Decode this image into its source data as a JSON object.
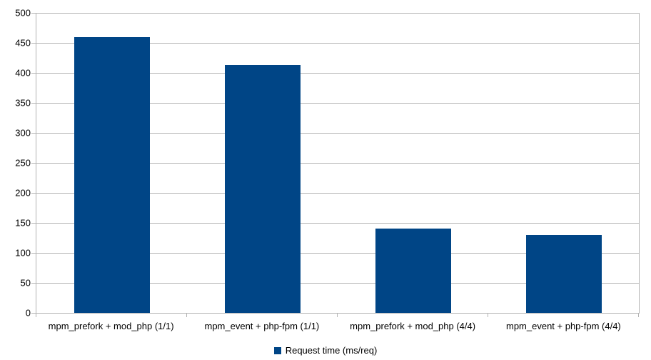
{
  "chart_data": {
    "type": "bar",
    "categories": [
      "mpm_prefork + mod_php (1/1)",
      "mpm_event + php-fpm (1/1)",
      "mpm_prefork + mod_php (4/4)",
      "mpm_event + php-fpm (4/4)"
    ],
    "series": [
      {
        "name": "Request time (ms/req)",
        "values": [
          460,
          413,
          140,
          130
        ]
      }
    ],
    "title": "",
    "xlabel": "",
    "ylabel": "",
    "ylim": [
      0,
      500
    ],
    "ytick_step": 50,
    "ytick_labels": [
      "0",
      "50",
      "100",
      "150",
      "200",
      "250",
      "300",
      "350",
      "400",
      "450",
      "500"
    ],
    "grid": "horizontal",
    "legend_position": "bottom-center",
    "legend_label": "Request time (ms/req)",
    "colors": {
      "bar": "#004586",
      "grid": "#b3b3b3",
      "axis": "#b3b3b3",
      "text": "#000000",
      "background": "#ffffff"
    }
  }
}
